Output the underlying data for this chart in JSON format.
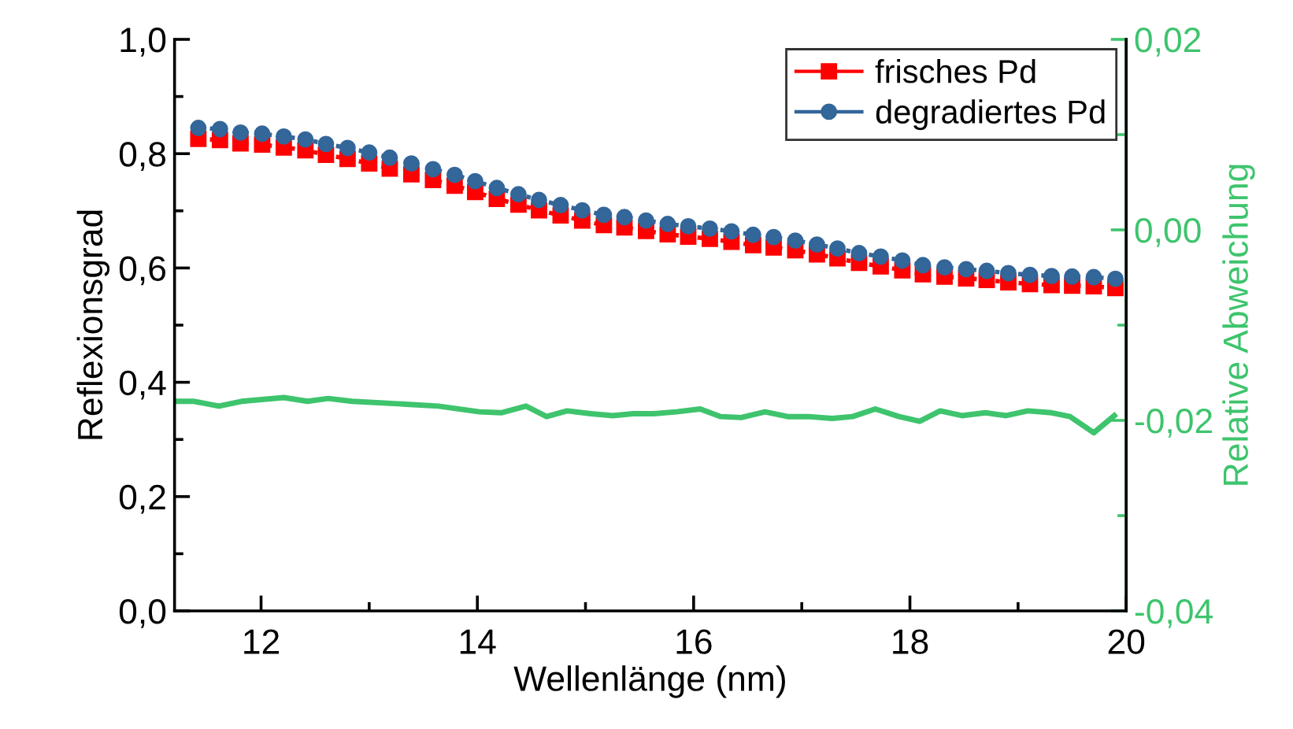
{
  "chart_data": {
    "type": "line",
    "xlabel": "Wellenlänge (nm)",
    "ylabel": "Reflexionsgrad",
    "y2label": "Relative Abweichung",
    "xlim": [
      11.2,
      20
    ],
    "xticks": [
      12,
      14,
      16,
      18,
      20
    ],
    "ylim": [
      0,
      1
    ],
    "yticks": [
      {
        "value": 0,
        "label": "0,0"
      },
      {
        "value": 0.2,
        "label": "0,2"
      },
      {
        "value": 0.4,
        "label": "0,4"
      },
      {
        "value": 0.6,
        "label": "0,6"
      },
      {
        "value": 0.8,
        "label": "0,8"
      },
      {
        "value": 1,
        "label": "1,0"
      }
    ],
    "y2lim": [
      -0.04,
      0.02
    ],
    "y2ticks": [
      {
        "value": -0.04,
        "label": "-0,04"
      },
      {
        "value": -0.02,
        "label": "-0,02"
      },
      {
        "value": 0,
        "label": "0,00"
      },
      {
        "value": 0.02,
        "label": "0,02"
      }
    ],
    "x": [
      11.42,
      11.62,
      11.81,
      12.01,
      12.21,
      12.41,
      12.6,
      12.8,
      13.0,
      13.19,
      13.39,
      13.59,
      13.79,
      13.98,
      14.18,
      14.38,
      14.57,
      14.77,
      14.97,
      15.17,
      15.36,
      15.56,
      15.76,
      15.95,
      16.15,
      16.35,
      16.55,
      16.74,
      16.94,
      17.14,
      17.33,
      17.53,
      17.73,
      17.93,
      18.12,
      18.32,
      18.52,
      18.71,
      18.91,
      19.11,
      19.31,
      19.5,
      19.7,
      19.9
    ],
    "legend": "top right",
    "grid": false,
    "line_style": "dotted",
    "series": [
      {
        "name": "frisches Pd",
        "color": "#ff0000",
        "marker": "square",
        "values": [
          0.826,
          0.824,
          0.818,
          0.816,
          0.811,
          0.806,
          0.798,
          0.791,
          0.783,
          0.774,
          0.764,
          0.754,
          0.744,
          0.733,
          0.721,
          0.711,
          0.701,
          0.692,
          0.683,
          0.675,
          0.671,
          0.665,
          0.659,
          0.655,
          0.651,
          0.646,
          0.64,
          0.636,
          0.631,
          0.624,
          0.617,
          0.609,
          0.603,
          0.596,
          0.589,
          0.585,
          0.582,
          0.579,
          0.575,
          0.572,
          0.57,
          0.569,
          0.568,
          0.565
        ]
      },
      {
        "name": "degradiertes Pd",
        "color": "#336699",
        "marker": "circle",
        "values": [
          0.845,
          0.843,
          0.837,
          0.835,
          0.83,
          0.825,
          0.817,
          0.81,
          0.802,
          0.793,
          0.783,
          0.773,
          0.763,
          0.752,
          0.74,
          0.729,
          0.719,
          0.71,
          0.701,
          0.693,
          0.689,
          0.683,
          0.677,
          0.673,
          0.669,
          0.664,
          0.658,
          0.654,
          0.648,
          0.641,
          0.634,
          0.626,
          0.62,
          0.613,
          0.605,
          0.601,
          0.598,
          0.595,
          0.591,
          0.588,
          0.586,
          0.585,
          0.584,
          0.581
        ]
      },
      {
        "axis": "y2",
        "color": "#3ec46d",
        "marker": "none",
        "line_style": "solid",
        "x": [
          11.2,
          11.38,
          11.61,
          11.82,
          12.21,
          12.43,
          12.62,
          12.84,
          13.34,
          13.64,
          14.02,
          14.22,
          14.45,
          14.64,
          14.83,
          15.05,
          15.25,
          15.44,
          15.63,
          15.84,
          16.06,
          16.25,
          16.44,
          16.66,
          16.87,
          17.06,
          17.28,
          17.47,
          17.68,
          17.9,
          18.09,
          18.28,
          18.48,
          18.7,
          18.89,
          19.09,
          19.31,
          19.48,
          19.7,
          19.89
        ],
        "values": [
          -0.018,
          -0.018,
          -0.0185,
          -0.018,
          -0.0176,
          -0.018,
          -0.0177,
          -0.018,
          -0.0183,
          -0.0185,
          -0.0191,
          -0.0192,
          -0.0185,
          -0.0196,
          -0.019,
          -0.0193,
          -0.0195,
          -0.0193,
          -0.0193,
          -0.0191,
          -0.0188,
          -0.0196,
          -0.0197,
          -0.0191,
          -0.0196,
          -0.0196,
          -0.0198,
          -0.0196,
          -0.0188,
          -0.0196,
          -0.0201,
          -0.019,
          -0.0195,
          -0.0192,
          -0.0195,
          -0.019,
          -0.0192,
          -0.0196,
          -0.0213,
          -0.0195
        ]
      }
    ]
  }
}
